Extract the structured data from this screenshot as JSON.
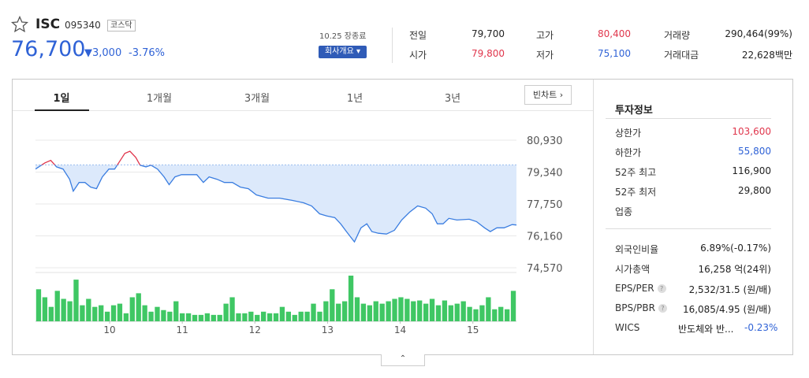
{
  "header": {
    "name": "ISC",
    "code": "095340",
    "market": "코스닥",
    "price": "76,700",
    "change": "▼3,000",
    "change_pct": "-3.76%",
    "status": "10.25 장종료",
    "company_button": "회사개요"
  },
  "quote": [
    {
      "label": "전일",
      "value": "79,700"
    },
    {
      "label": "시가",
      "value": "79,800"
    },
    {
      "label": "고가",
      "value": "80,400"
    },
    {
      "label": "저가",
      "value": "75,100"
    },
    {
      "label": "거래량",
      "value": "290,464(99%)"
    },
    {
      "label": "거래대금",
      "value": "22,628백만"
    }
  ],
  "tabs": [
    "1일",
    "1개월",
    "3개월",
    "1년",
    "3년"
  ],
  "chart_button": "빈차트",
  "chart_data": {
    "type": "line",
    "x": [
      8.98,
      9.11,
      9.19,
      9.27,
      9.36,
      9.45,
      9.5,
      9.58,
      9.66,
      9.74,
      9.82,
      9.9,
      9.99,
      10.07,
      10.14,
      10.21,
      10.28,
      10.36,
      10.42,
      10.5,
      10.57,
      10.66,
      10.75,
      10.82,
      10.9,
      10.99,
      11.1,
      11.2,
      11.29,
      11.37,
      11.48,
      11.58,
      11.69,
      11.8,
      11.91,
      12.02,
      12.18,
      12.34,
      12.51,
      12.67,
      12.78,
      12.89,
      12.99,
      13.1,
      13.18,
      13.26,
      13.37,
      13.46,
      13.54,
      13.61,
      13.7,
      13.81,
      13.92,
      14.02,
      14.13,
      14.24,
      14.35,
      14.44,
      14.51,
      14.59,
      14.67,
      14.78,
      14.95,
      15.05,
      15.16,
      15.24,
      15.33,
      15.43,
      15.54,
      15.6
    ],
    "values": [
      79490,
      79800,
      79920,
      79600,
      79490,
      78980,
      78390,
      78820,
      78820,
      78590,
      78510,
      79100,
      79490,
      79490,
      79880,
      80270,
      80380,
      80070,
      79680,
      79600,
      79680,
      79490,
      79100,
      78710,
      79100,
      79210,
      79210,
      79210,
      78820,
      79100,
      78980,
      78820,
      78820,
      78590,
      78510,
      78200,
      78040,
      78040,
      77930,
      77810,
      77650,
      77260,
      77150,
      77070,
      76760,
      76370,
      75860,
      76560,
      76760,
      76370,
      76290,
      76250,
      76440,
      76950,
      77340,
      77650,
      77540,
      77260,
      76760,
      76760,
      77030,
      76950,
      76990,
      76870,
      76560,
      76370,
      76560,
      76560,
      76720,
      76700
    ],
    "baseline": 79700,
    "xlim": [
      8.98,
      15.6
    ],
    "xticks": [
      10,
      11,
      12,
      13,
      14,
      15
    ],
    "ylim": [
      74570,
      81440
    ],
    "yticks": [
      {
        "value": 80930,
        "label": "80,930"
      },
      {
        "value": 79340,
        "label": "79,340"
      },
      {
        "value": 77750,
        "label": "77,750"
      },
      {
        "value": 76160,
        "label": "76,160"
      },
      {
        "value": 74570,
        "label": "74,570"
      }
    ],
    "grid": true,
    "color": "#3a7de0",
    "up_color": "#e0364c",
    "fill_color": "#dce9fb",
    "volume": {
      "type": "bar",
      "color": "#3fc764",
      "values": [
        40,
        30,
        18,
        38,
        28,
        25,
        52,
        20,
        28,
        18,
        20,
        12,
        20,
        22,
        10,
        30,
        35,
        20,
        12,
        18,
        14,
        12,
        25,
        10,
        10,
        8,
        8,
        10,
        8,
        8,
        22,
        30,
        10,
        10,
        12,
        8,
        12,
        10,
        10,
        18,
        12,
        8,
        12,
        12,
        22,
        12,
        25,
        40,
        22,
        25,
        57,
        30,
        22,
        20,
        25,
        22,
        25,
        28,
        30,
        28,
        25,
        26,
        22,
        28,
        20,
        26,
        20,
        22,
        25,
        18,
        15,
        20,
        30,
        15,
        18,
        15,
        38
      ]
    }
  },
  "invest_info": {
    "title": "투자정보",
    "rows": [
      {
        "label": "상한가",
        "value": "103,600"
      },
      {
        "label": "하한가",
        "value": "55,800"
      },
      {
        "label": "52주 최고",
        "value": "116,900"
      },
      {
        "label": "52주 최저",
        "value": "29,800"
      },
      {
        "label": "업종"
      },
      {
        "label": "외국인비율",
        "value": "6.89%(-0.17%)"
      },
      {
        "label": "시가총액",
        "value": "16,258 억(24위)"
      },
      {
        "label": "EPS/PER",
        "value": "2,532/31.5 (원/배)"
      },
      {
        "label": "BPS/PBR",
        "value": "16,085/4.95 (원/배)"
      },
      {
        "label": "WICS",
        "value": "반도체와 반...",
        "change": "-0.23%"
      }
    ]
  }
}
